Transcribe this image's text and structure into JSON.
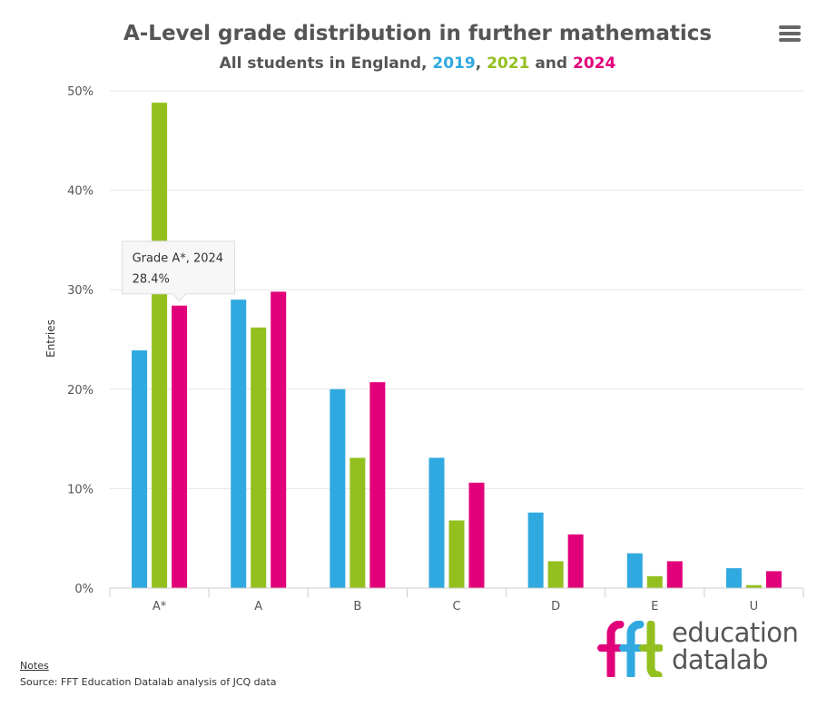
{
  "chart_data": {
    "type": "bar",
    "title": "A-Level grade distribution in further mathematics",
    "subtitle": {
      "prefix": "All students in England, ",
      "years": [
        "2019",
        "2021",
        "2024"
      ],
      "separators": [
        ", ",
        " and "
      ]
    },
    "categories": [
      "A*",
      "A",
      "B",
      "C",
      "D",
      "E",
      "U"
    ],
    "series": [
      {
        "name": "2019",
        "color": "#2fa9df",
        "values": [
          23.9,
          29.0,
          20.0,
          13.1,
          7.6,
          3.5,
          2.0
        ]
      },
      {
        "name": "2021",
        "color": "#93c01f",
        "values": [
          48.8,
          26.2,
          13.1,
          6.8,
          2.7,
          1.2,
          0.3
        ]
      },
      {
        "name": "2024",
        "color": "#e2007a",
        "values": [
          28.4,
          29.8,
          20.7,
          10.6,
          5.4,
          2.7,
          1.7
        ]
      }
    ],
    "ylabel": "Entries",
    "xlabel": "",
    "ylim": [
      0,
      50
    ],
    "yticks": [
      "0%",
      "10%",
      "20%",
      "30%",
      "40%",
      "50%"
    ],
    "ytick_values": [
      0,
      10,
      20,
      30,
      40,
      50
    ],
    "grid": true,
    "tooltip": {
      "category": "A*",
      "series": "2024",
      "line1": "Grade A*, 2024",
      "line2": "28.4%"
    }
  },
  "menu": {
    "icon": "hamburger-menu-icon"
  },
  "footer": {
    "notes_label": "Notes",
    "source": "Source: FFT Education Datalab analysis of JCQ data"
  },
  "logo": {
    "mark": "fft",
    "line1": "education",
    "line2": "datalab",
    "colors": {
      "f1": "#e2007a",
      "f2": "#2fa9df",
      "t": "#93c01f"
    }
  }
}
